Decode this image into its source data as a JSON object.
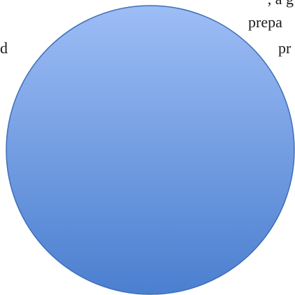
{
  "diagram": {
    "text_fragments": {
      "top_right": ", a g",
      "left": "d",
      "prep": "prepa",
      "pr": "pr"
    },
    "shape": {
      "kind": "circle",
      "fill_top": "#9dbdf5",
      "fill_bottom": "#4b7fd0",
      "stroke": "#3f6fb8"
    }
  }
}
